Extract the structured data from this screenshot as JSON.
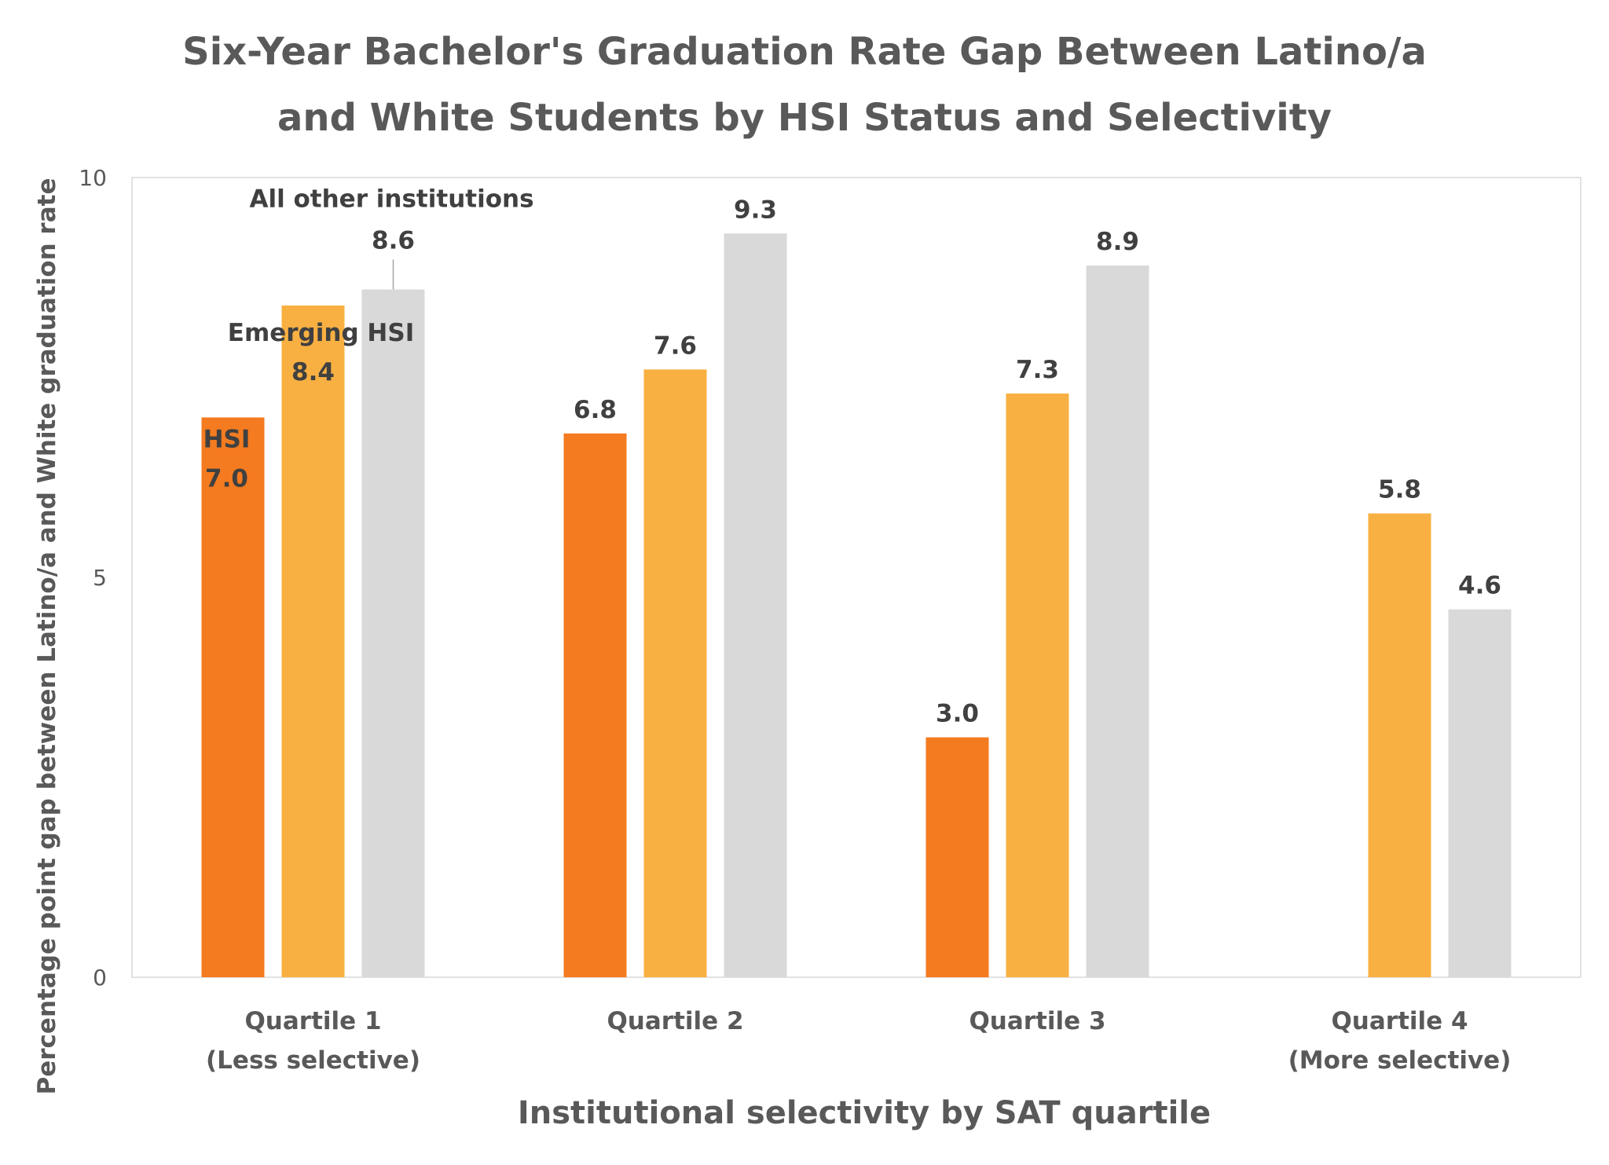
{
  "chart_data": {
    "type": "bar",
    "title_lines": [
      "Six-Year Bachelor's Graduation Rate Gap Between Latino/a",
      "and White Students by HSI Status and Selectivity"
    ],
    "xlabel": "Institutional selectivity by SAT quartile",
    "ylabel": "Percentage point gap between Latino/a and White graduation rate",
    "ylim": [
      0,
      10
    ],
    "yticks": [
      "0",
      "5",
      "10"
    ],
    "grid": false,
    "categories": [
      [
        "Quartile 1",
        "(Less selective)"
      ],
      [
        "Quartile 2"
      ],
      [
        "Quartile 3"
      ],
      [
        "Quartile  4",
        "(More selective)"
      ]
    ],
    "series": [
      {
        "name": "HSI",
        "color": "#F47B20",
        "values": [
          7.0,
          6.8,
          3.0,
          null
        ],
        "labels": [
          "7.0",
          "6.8",
          "3.0",
          ""
        ]
      },
      {
        "name": "Emerging HSI",
        "color": "#F9B042",
        "values": [
          8.4,
          7.6,
          7.3,
          5.8
        ],
        "labels": [
          "8.4",
          "7.6",
          "7.3",
          "5.8"
        ]
      },
      {
        "name": "All other institutions",
        "color": "#D9D9D9",
        "values": [
          8.6,
          9.3,
          8.9,
          4.6
        ],
        "labels": [
          "8.6",
          "9.3",
          "8.9",
          "4.6"
        ]
      }
    ]
  }
}
